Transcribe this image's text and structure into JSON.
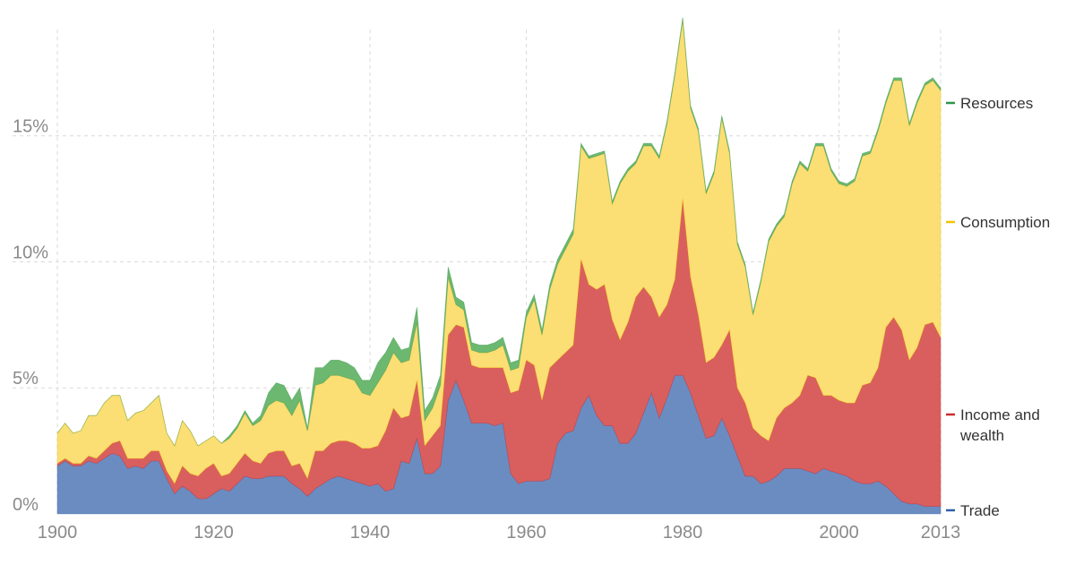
{
  "chart_data": {
    "type": "area",
    "stacked": true,
    "title": "",
    "xlabel": "",
    "ylabel": "",
    "xlim": [
      1900,
      2013
    ],
    "ylim": [
      0,
      19.5
    ],
    "grid": true,
    "legend_placement": "right, at end of each layer",
    "x_ticks": [
      {
        "value": 1900,
        "label": "1900"
      },
      {
        "value": 1920,
        "label": "1920"
      },
      {
        "value": 1940,
        "label": "1940"
      },
      {
        "value": 1960,
        "label": "1960"
      },
      {
        "value": 1980,
        "label": "1980"
      },
      {
        "value": 2000,
        "label": "2000"
      },
      {
        "value": 2013,
        "label": "2013"
      }
    ],
    "y_ticks": [
      {
        "value": 0,
        "label": "0%"
      },
      {
        "value": 5,
        "label": "5%"
      },
      {
        "value": 10,
        "label": "10%"
      },
      {
        "value": 15,
        "label": "15%"
      }
    ],
    "x": [
      1900,
      1901,
      1902,
      1903,
      1904,
      1905,
      1906,
      1907,
      1908,
      1909,
      1910,
      1911,
      1912,
      1913,
      1914,
      1915,
      1916,
      1917,
      1918,
      1919,
      1920,
      1921,
      1922,
      1923,
      1924,
      1925,
      1926,
      1927,
      1928,
      1929,
      1930,
      1931,
      1932,
      1933,
      1934,
      1935,
      1936,
      1937,
      1938,
      1939,
      1940,
      1941,
      1942,
      1943,
      1944,
      1945,
      1946,
      1947,
      1948,
      1949,
      1950,
      1951,
      1952,
      1953,
      1954,
      1955,
      1956,
      1957,
      1958,
      1959,
      1960,
      1961,
      1962,
      1963,
      1964,
      1965,
      1966,
      1967,
      1968,
      1969,
      1970,
      1971,
      1972,
      1973,
      1974,
      1975,
      1976,
      1977,
      1978,
      1979,
      1980,
      1981,
      1982,
      1983,
      1984,
      1985,
      1986,
      1987,
      1988,
      1989,
      1990,
      1991,
      1992,
      1993,
      1994,
      1995,
      1996,
      1997,
      1998,
      1999,
      2000,
      2001,
      2002,
      2003,
      2004,
      2005,
      2006,
      2007,
      2008,
      2009,
      2010,
      2011,
      2012,
      2013
    ],
    "series": [
      {
        "name": "Trade",
        "color": "#6b8cc1",
        "values": [
          1.9,
          2.1,
          1.9,
          1.9,
          2.1,
          2.0,
          2.2,
          2.4,
          2.3,
          1.8,
          1.9,
          1.8,
          2.1,
          2.1,
          1.4,
          0.8,
          1.1,
          0.9,
          0.6,
          0.6,
          0.8,
          1.0,
          0.9,
          1.2,
          1.5,
          1.4,
          1.4,
          1.5,
          1.5,
          1.5,
          1.2,
          1.0,
          0.7,
          1.0,
          1.2,
          1.4,
          1.5,
          1.4,
          1.3,
          1.2,
          1.1,
          1.2,
          0.9,
          1.0,
          2.1,
          2.0,
          3.0,
          1.6,
          1.6,
          1.9,
          4.5,
          5.3,
          4.5,
          3.6,
          3.6,
          3.6,
          3.5,
          3.6,
          1.6,
          1.2,
          1.3,
          1.3,
          1.3,
          1.4,
          2.8,
          3.2,
          3.3,
          4.2,
          4.7,
          3.9,
          3.5,
          3.5,
          2.8,
          2.8,
          3.2,
          4.0,
          4.8,
          3.8,
          4.6,
          5.5,
          5.5,
          4.8,
          3.9,
          3.0,
          3.1,
          3.8,
          3.1,
          2.3,
          1.5,
          1.5,
          1.2,
          1.3,
          1.5,
          1.8,
          1.8,
          1.8,
          1.7,
          1.6,
          1.8,
          1.7,
          1.6,
          1.5,
          1.3,
          1.2,
          1.2,
          1.3,
          1.1,
          0.8,
          0.5,
          0.4,
          0.4,
          0.3,
          0.3,
          0.3
        ]
      },
      {
        "name": "Income and wealth",
        "values": [
          0.1,
          0.1,
          0.1,
          0.1,
          0.2,
          0.2,
          0.3,
          0.4,
          0.6,
          0.4,
          0.3,
          0.4,
          0.4,
          0.4,
          0.3,
          0.4,
          0.8,
          0.7,
          0.9,
          1.2,
          1.2,
          0.5,
          0.7,
          0.8,
          0.9,
          0.7,
          0.6,
          0.9,
          1.0,
          1.0,
          0.7,
          1.0,
          0.7,
          1.5,
          1.3,
          1.4,
          1.4,
          1.5,
          1.5,
          1.4,
          1.5,
          1.5,
          2.4,
          3.2,
          1.7,
          1.9,
          2.3,
          1.1,
          1.5,
          1.6,
          2.6,
          2.2,
          2.9,
          2.3,
          2.2,
          2.2,
          2.3,
          2.2,
          3.2,
          3.7,
          4.8,
          4.6,
          3.2,
          4.4,
          3.3,
          3.2,
          3.4,
          5.9,
          4.4,
          5.0,
          5.6,
          4.2,
          4.1,
          4.8,
          5.4,
          5.0,
          3.8,
          4.0,
          3.7,
          3.8,
          7.0,
          4.6,
          4.0,
          3.0,
          3.1,
          2.9,
          4.2,
          2.7,
          2.9,
          1.9,
          1.9,
          1.6,
          2.3,
          2.4,
          2.6,
          2.9,
          3.8,
          3.8,
          2.9,
          3.0,
          2.9,
          2.9,
          3.1,
          3.9,
          4.0,
          4.5,
          6.3,
          7.0,
          6.8,
          5.7,
          6.2,
          7.2,
          7.3,
          6.7
        ]
      },
      {
        "name": "Consumption",
        "color": "#fbde74",
        "values": [
          1.2,
          1.4,
          1.2,
          1.3,
          1.6,
          1.7,
          1.9,
          1.9,
          1.8,
          1.5,
          1.8,
          1.9,
          1.9,
          2.2,
          1.5,
          1.5,
          1.8,
          1.7,
          1.2,
          1.1,
          1.1,
          1.3,
          1.4,
          1.4,
          1.6,
          1.4,
          1.7,
          1.9,
          2.0,
          1.9,
          2.0,
          2.5,
          1.9,
          2.6,
          2.7,
          2.7,
          2.6,
          2.5,
          2.5,
          2.2,
          2.1,
          2.5,
          2.4,
          2.2,
          2.2,
          2.2,
          2.3,
          1.0,
          1.1,
          1.6,
          2.3,
          0.8,
          0.7,
          0.6,
          0.6,
          0.6,
          0.7,
          0.9,
          0.9,
          0.9,
          1.7,
          2.6,
          2.6,
          3.1,
          3.8,
          4.1,
          4.4,
          4.5,
          5.0,
          5.3,
          5.2,
          4.6,
          6.2,
          6.0,
          5.3,
          5.6,
          6.0,
          6.3,
          7.2,
          8.1,
          7.1,
          6.7,
          7.3,
          6.7,
          7.3,
          9.0,
          7.0,
          5.7,
          5.4,
          4.5,
          6.1,
          7.9,
          7.6,
          7.6,
          8.7,
          9.2,
          8.1,
          9.2,
          9.9,
          8.9,
          8.6,
          8.6,
          8.8,
          9.1,
          9.1,
          9.4,
          8.9,
          9.4,
          9.9,
          9.3,
          9.7,
          9.5,
          9.6,
          9.8
        ]
      },
      {
        "name": "Resources",
        "values": [
          0,
          0,
          0,
          0,
          0,
          0,
          0,
          0,
          0,
          0,
          0,
          0,
          0,
          0,
          0,
          0,
          0,
          0,
          0,
          0,
          0,
          0,
          0.1,
          0.1,
          0.1,
          0.1,
          0.2,
          0.5,
          0.7,
          0.7,
          0.6,
          0.5,
          0.1,
          0.7,
          0.6,
          0.6,
          0.6,
          0.6,
          0.5,
          0.5,
          0.6,
          0.8,
          0.7,
          0.6,
          0.5,
          0.5,
          0.6,
          0.4,
          0.4,
          0.4,
          0.4,
          0.3,
          0.3,
          0.3,
          0.3,
          0.3,
          0.3,
          0.3,
          0.3,
          0.3,
          0.2,
          0.2,
          0.2,
          0.2,
          0.2,
          0.2,
          0.2,
          0.1,
          0.1,
          0.1,
          0.1,
          0.1,
          0.1,
          0.1,
          0.1,
          0.1,
          0.1,
          0.1,
          0.1,
          0.1,
          0.1,
          0.1,
          0.1,
          0.1,
          0.1,
          0.1,
          0.1,
          0.1,
          0.1,
          0.1,
          0.1,
          0.1,
          0.1,
          0.1,
          0.1,
          0.1,
          0.1,
          0.1,
          0.1,
          0.1,
          0.1,
          0.1,
          0.1,
          0.1,
          0.1,
          0.1,
          0.1,
          0.1,
          0.1,
          0.1,
          0.1,
          0.1,
          0.1,
          0.1
        ]
      }
    ],
    "legend": [
      {
        "series": "Resources",
        "label": "Resources",
        "color": "#2e9448"
      },
      {
        "series": "Consumption",
        "label": "Consumption",
        "color": "#f2c200"
      },
      {
        "series": "Income and wealth",
        "label": "Income and wealth",
        "color": "#cc2b2b"
      },
      {
        "series": "Trade",
        "label": "Trade",
        "color": "#2f5fa8"
      }
    ],
    "fill_colors": {
      "Trade": "#6b8cc1",
      "Income and wealth": "#d95f5f",
      "Consumption": "#fbde74",
      "Resources": "#6db870"
    }
  }
}
